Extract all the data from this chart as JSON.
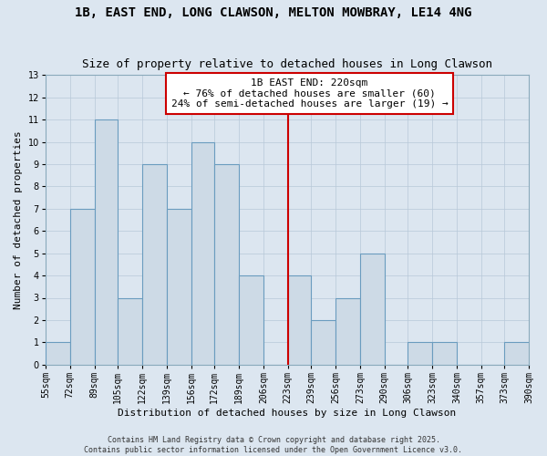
{
  "title": "1B, EAST END, LONG CLAWSON, MELTON MOWBRAY, LE14 4NG",
  "subtitle": "Size of property relative to detached houses in Long Clawson",
  "xlabel": "Distribution of detached houses by size in Long Clawson",
  "ylabel": "Number of detached properties",
  "bin_lefts": [
    55,
    72,
    89,
    105,
    122,
    139,
    156,
    172,
    189,
    206,
    223,
    239,
    256,
    273,
    290,
    306,
    323,
    340,
    357,
    373
  ],
  "bin_rights": [
    72,
    89,
    105,
    122,
    139,
    156,
    172,
    189,
    206,
    223,
    239,
    256,
    273,
    290,
    306,
    323,
    340,
    357,
    373,
    390
  ],
  "bin_labels": [
    "55sqm",
    "72sqm",
    "89sqm",
    "105sqm",
    "122sqm",
    "139sqm",
    "156sqm",
    "172sqm",
    "189sqm",
    "206sqm",
    "223sqm",
    "239sqm",
    "256sqm",
    "273sqm",
    "290sqm",
    "306sqm",
    "323sqm",
    "340sqm",
    "357sqm",
    "373sqm",
    "390sqm"
  ],
  "xtick_positions": [
    55,
    72,
    89,
    105,
    122,
    139,
    156,
    172,
    189,
    206,
    223,
    239,
    256,
    273,
    290,
    306,
    323,
    340,
    357,
    373,
    390
  ],
  "counts": [
    1,
    7,
    11,
    3,
    9,
    7,
    10,
    9,
    4,
    0,
    4,
    2,
    3,
    5,
    0,
    1,
    1,
    0,
    0,
    1
  ],
  "bar_facecolor": "#cddae6",
  "bar_edgecolor": "#6a9cbf",
  "vline_x": 223,
  "vline_color": "#cc0000",
  "annotation_title": "1B EAST END: 220sqm",
  "annotation_line1": "← 76% of detached houses are smaller (60)",
  "annotation_line2": "24% of semi-detached houses are larger (19) →",
  "annotation_box_edgecolor": "#cc0000",
  "annotation_box_facecolor": "#ffffff",
  "ylim": [
    0,
    13
  ],
  "yticks": [
    0,
    1,
    2,
    3,
    4,
    5,
    6,
    7,
    8,
    9,
    10,
    11,
    12,
    13
  ],
  "xlim_left": 55,
  "xlim_right": 390,
  "background_color": "#dce6f0",
  "grid_color": "#b8c8d8",
  "footer1": "Contains HM Land Registry data © Crown copyright and database right 2025.",
  "footer2": "Contains public sector information licensed under the Open Government Licence v3.0.",
  "title_fontsize": 10,
  "subtitle_fontsize": 9,
  "axis_label_fontsize": 8,
  "tick_fontsize": 7,
  "annotation_fontsize": 8,
  "footer_fontsize": 6
}
